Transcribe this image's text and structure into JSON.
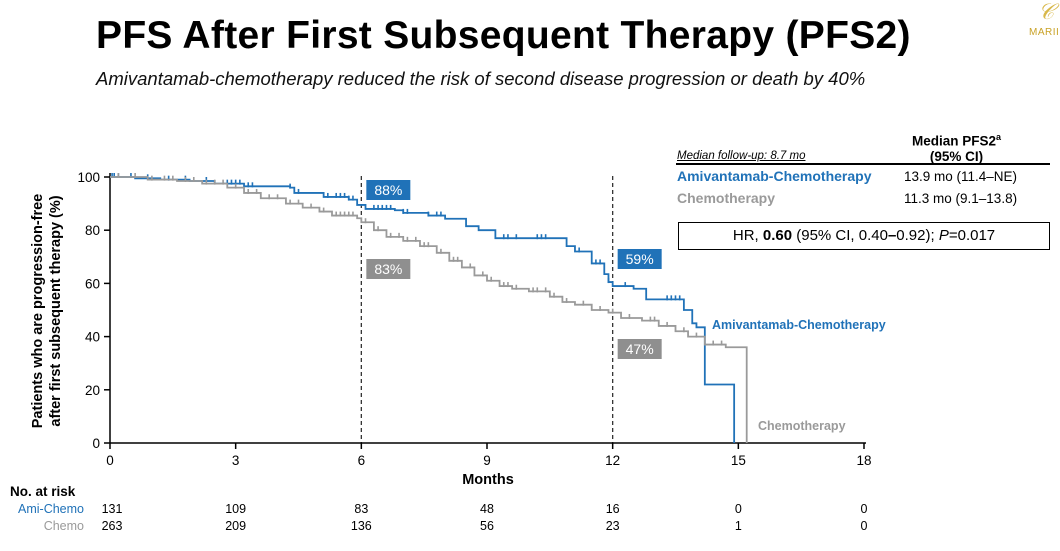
{
  "title": "PFS After First Subsequent Therapy (PFS2)",
  "subtitle": "Amivantamab-chemotherapy reduced the risk of second disease progression or death by 40%",
  "logo": "MARII",
  "legend": {
    "header_line1": "Median PFS2",
    "header_sup": "a",
    "header_line2": "(95% CI)",
    "followup": "Median follow-up: 8.7 mo",
    "rows": [
      {
        "name": "Amivantamab-Chemotherapy",
        "median": "13.9 mo (11.4–NE)",
        "color": "#2072b8"
      },
      {
        "name": "Chemotherapy",
        "median": "11.3 mo (9.1–13.8)",
        "color": "#9a9a9a"
      }
    ],
    "hr_prefix": "HR, ",
    "hr_value": "0.60",
    "hr_ci": " (95% CI, 0.40",
    "hr_dash": "–",
    "hr_ci_end": "0.92); ",
    "hr_p_label": "P",
    "hr_p_value": "=0.017"
  },
  "chart_data": {
    "type": "line",
    "title": "",
    "xlabel": "Months",
    "ylabel_line1": "Patients who are progression-free",
    "ylabel_line2": "after first subsequent therapy (%)",
    "xlim": [
      0,
      18
    ],
    "ylim": [
      0,
      100
    ],
    "xticks": [
      0,
      3,
      6,
      9,
      12,
      15,
      18
    ],
    "yticks": [
      0,
      20,
      40,
      60,
      80,
      100
    ],
    "reference_lines_x": [
      6,
      12
    ],
    "series": [
      {
        "name": "Amivantamab-Chemotherapy",
        "color": "#2072b8",
        "steps": [
          [
            0,
            100
          ],
          [
            0.6,
            99.5
          ],
          [
            1.2,
            99
          ],
          [
            1.9,
            98.5
          ],
          [
            2.5,
            97.5
          ],
          [
            3.2,
            96.5
          ],
          [
            4.3,
            96
          ],
          [
            4.4,
            94
          ],
          [
            5.1,
            92.5
          ],
          [
            5.7,
            91.5
          ],
          [
            5.9,
            89.5
          ],
          [
            6.1,
            88
          ],
          [
            6.8,
            87.5
          ],
          [
            7.0,
            86.5
          ],
          [
            7.6,
            85.5
          ],
          [
            8.0,
            84.3
          ],
          [
            8.5,
            81.5
          ],
          [
            8.8,
            80
          ],
          [
            9.2,
            77
          ],
          [
            10.3,
            77
          ],
          [
            10.9,
            74
          ],
          [
            11.1,
            72
          ],
          [
            11.5,
            67.5
          ],
          [
            11.8,
            63.5
          ],
          [
            11.9,
            60.5
          ],
          [
            12.0,
            59
          ],
          [
            12.5,
            58
          ],
          [
            12.8,
            54
          ],
          [
            13.7,
            50
          ],
          [
            13.9,
            45
          ],
          [
            14.0,
            43.5
          ],
          [
            14.2,
            22
          ],
          [
            14.9,
            0
          ]
        ],
        "end_x": 14.9,
        "censor_x": [
          0.05,
          0.1,
          0.2,
          0.5,
          0.9,
          1.4,
          1.8,
          2.3,
          2.8,
          2.9,
          3.0,
          3.1,
          3.3,
          3.4,
          4.3,
          4.5,
          5.2,
          5.4,
          5.5,
          5.6,
          5.7,
          5.8,
          6.3,
          6.4,
          6.5,
          6.6,
          6.7,
          7.0,
          7.1,
          7.6,
          7.8,
          7.9,
          9.4,
          9.5,
          9.7,
          10.2,
          10.3,
          10.4,
          11.2,
          11.6,
          11.7,
          11.9,
          12.3,
          13.3,
          13.4,
          13.5,
          13.6
        ],
        "callout": {
          "x": 6,
          "label": "88%"
        },
        "callout2": {
          "x": 12,
          "label": "59%"
        },
        "end_label": "Amivantamab-Chemotherapy"
      },
      {
        "name": "Chemotherapy",
        "color": "#9a9a9a",
        "steps": [
          [
            0,
            100
          ],
          [
            0.9,
            99
          ],
          [
            1.6,
            98.5
          ],
          [
            2.2,
            97.5
          ],
          [
            2.8,
            96
          ],
          [
            3.2,
            94
          ],
          [
            3.6,
            92
          ],
          [
            4.2,
            90
          ],
          [
            4.6,
            88.5
          ],
          [
            5.0,
            87
          ],
          [
            5.3,
            85.5
          ],
          [
            5.9,
            84.5
          ],
          [
            6.0,
            83
          ],
          [
            6.3,
            80
          ],
          [
            6.6,
            77.5
          ],
          [
            7.0,
            76
          ],
          [
            7.4,
            74
          ],
          [
            7.8,
            71.5
          ],
          [
            8.1,
            68.5
          ],
          [
            8.4,
            66
          ],
          [
            8.7,
            63
          ],
          [
            9.0,
            61
          ],
          [
            9.3,
            59
          ],
          [
            9.6,
            58
          ],
          [
            10.0,
            57
          ],
          [
            10.5,
            55
          ],
          [
            10.8,
            53
          ],
          [
            11.1,
            52
          ],
          [
            11.5,
            50
          ],
          [
            11.9,
            49
          ],
          [
            12.2,
            47
          ],
          [
            12.7,
            46
          ],
          [
            13.1,
            44
          ],
          [
            13.5,
            42
          ],
          [
            13.8,
            40
          ],
          [
            14.2,
            37
          ],
          [
            14.7,
            36
          ],
          [
            15.2,
            0
          ]
        ],
        "end_x": 15.2,
        "censor_x": [
          0.2,
          0.6,
          1.0,
          1.3,
          1.5,
          1.8,
          2.0,
          2.3,
          2.5,
          2.7,
          3.0,
          3.3,
          3.5,
          3.8,
          4.0,
          4.3,
          4.5,
          4.8,
          5.1,
          5.4,
          5.5,
          5.6,
          5.7,
          5.8,
          6.1,
          6.4,
          6.7,
          6.9,
          7.1,
          7.3,
          7.5,
          7.6,
          7.9,
          8.2,
          8.3,
          8.6,
          8.9,
          9.1,
          9.4,
          9.5,
          9.7,
          10.1,
          10.2,
          10.4,
          10.6,
          10.9,
          11.3,
          11.7,
          12.0,
          12.4,
          12.9,
          13.0,
          13.3,
          13.7,
          14.0,
          14.4,
          14.6
        ],
        "callout": {
          "x": 6,
          "label": "83%"
        },
        "callout2": {
          "x": 12,
          "label": "47%"
        },
        "end_label": "Chemotherapy"
      }
    ],
    "risk_table": {
      "title": "No. at risk",
      "rows": [
        {
          "label": "Ami-Chemo",
          "color": "#2072b8",
          "values": [
            "131",
            "109",
            "83",
            "48",
            "16",
            "0",
            "0"
          ]
        },
        {
          "label": "Chemo",
          "color": "#9a9a9a",
          "values": [
            "263",
            "209",
            "136",
            "56",
            "23",
            "1",
            "0"
          ]
        }
      ]
    }
  }
}
